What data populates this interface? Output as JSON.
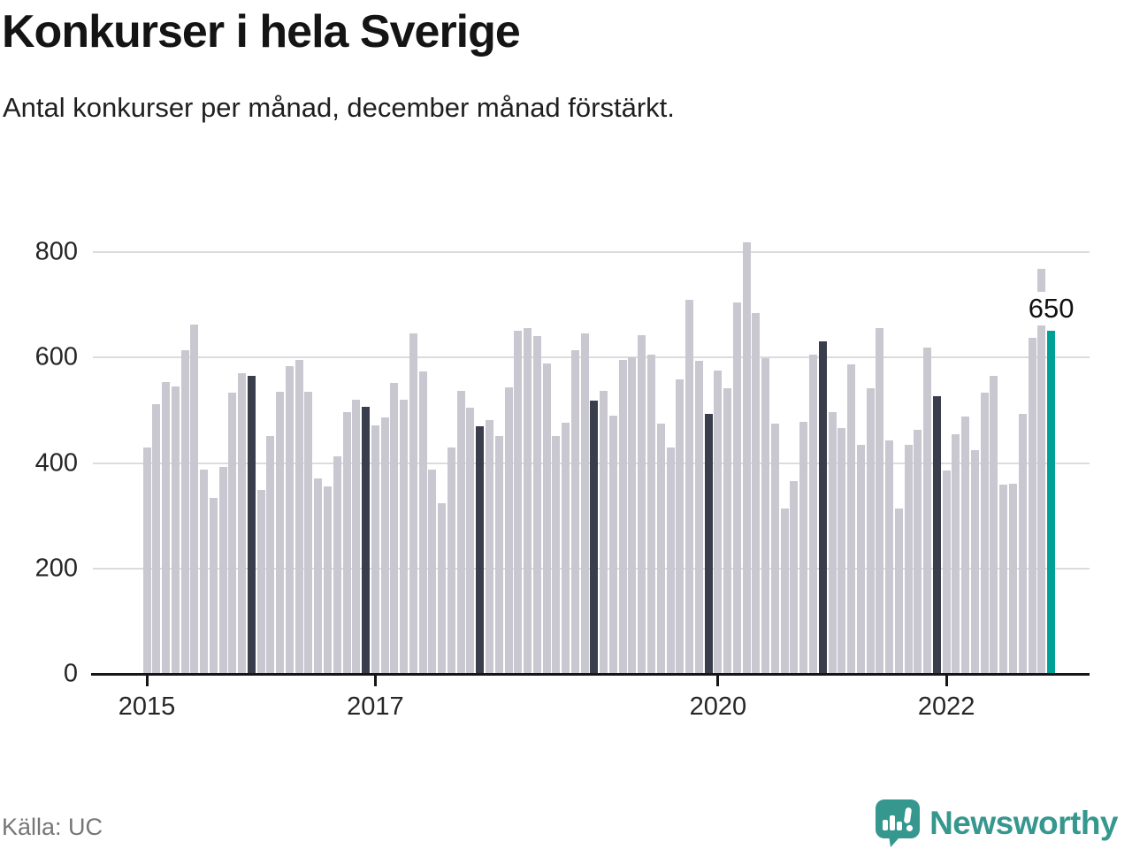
{
  "header": {
    "title": "Konkurser i hela Sverige",
    "subtitle": "Antal konkurser per månad, december månad förstärkt."
  },
  "footer": {
    "source": "Källa: UC",
    "brand": "Newsworthy"
  },
  "colors": {
    "bar": "#c9c8d1",
    "december_bar": "#3a3d4b",
    "highlight_bar": "#00a097",
    "brand_teal": "#35978e",
    "grid": "#dcdce0",
    "axis": "#161616",
    "tick_text": "#262626"
  },
  "chart_data": {
    "type": "bar",
    "title": "Konkurser i hela Sverige",
    "subtitle": "Antal konkurser per månad, december månad förstärkt.",
    "x_unit": "month",
    "y_unit": "antal konkurser",
    "x_tick_labels": [
      "2015",
      "2017",
      "2020",
      "2022"
    ],
    "y_ticks": [
      0,
      200,
      400,
      600,
      800
    ],
    "ylim": [
      0,
      860
    ],
    "grid": true,
    "legend": "none",
    "december_highlighted": true,
    "series": [
      {
        "year": 2015,
        "monthly_values": [
          430,
          512,
          553,
          545,
          614,
          663,
          388,
          333,
          393,
          533,
          571,
          565
        ]
      },
      {
        "year": 2016,
        "monthly_values": [
          349,
          451,
          535,
          584,
          595,
          535,
          370,
          355,
          413,
          496,
          520,
          506
        ]
      },
      {
        "year": 2017,
        "monthly_values": [
          471,
          486,
          552,
          520,
          646,
          574,
          387,
          323,
          430,
          536,
          504,
          469
        ]
      },
      {
        "year": 2018,
        "monthly_values": [
          482,
          451,
          544,
          650,
          656,
          641,
          589,
          451,
          477,
          614,
          646,
          518
        ]
      },
      {
        "year": 2019,
        "monthly_values": [
          537,
          490,
          595,
          600,
          643,
          606,
          475,
          430,
          559,
          709,
          594,
          493
        ]
      },
      {
        "year": 2020,
        "monthly_values": [
          576,
          542,
          705,
          818,
          684,
          598,
          474,
          314,
          365,
          478,
          606,
          630
        ]
      },
      {
        "year": 2021,
        "monthly_values": [
          497,
          467,
          587,
          435,
          542,
          656,
          443,
          314,
          435,
          463,
          619,
          527
        ]
      },
      {
        "year": 2022,
        "monthly_values": [
          385,
          454,
          488,
          425,
          534,
          565,
          359,
          361,
          493,
          637,
          768,
          650
        ]
      }
    ],
    "annotation": {
      "year": 2022,
      "month": 12,
      "label": "650",
      "value": 650
    }
  }
}
